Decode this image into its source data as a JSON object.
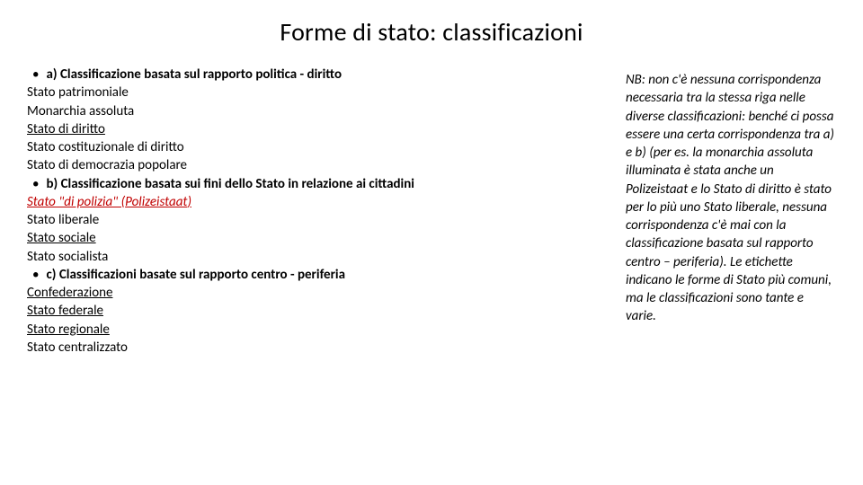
{
  "title": "Forme di stato: classificazioni",
  "left": {
    "a_head": "a) Classificazione basata sul rapporto politica - diritto",
    "a_items": {
      "i0": "Stato patrimoniale",
      "i1": "Monarchia assoluta",
      "i2": "Stato di diritto",
      "i3": "Stato costituzionale di diritto",
      "i4": "Stato di democrazia popolare"
    },
    "b_head": "b) Classificazione basata sui fini dello Stato in relazione ai cittadini",
    "b_items": {
      "i0_pre": "Stato \"di polizia\" (",
      "i0_ital": "Polizeistaat",
      "i0_post": ")",
      "i1": "Stato liberale",
      "i2": "Stato sociale ",
      "i3": "Stato socialista"
    },
    "c_head": "c) Classificazioni basate sul rapporto centro - periferia",
    "c_items": {
      "i0": "Confederazione",
      "i1": "Stato federale",
      "i2": "Stato regionale",
      "i3": "Stato centralizzato"
    }
  },
  "right": {
    "note": " NB: non c'è nessuna corrispondenza necessaria tra la stessa riga nelle diverse classificazioni: benché ci possa essere una certa corrispondenza tra a) e b) (per es. la monarchia assoluta illuminata è stata anche un Polizeistaat e lo Stato di diritto è stato per lo più uno Stato liberale, nessuna corrispondenza c'è mai con la classificazione basata sul rapporto centro – periferia). Le etichette indicano le forme di Stato più comuni, ma le classificazioni sono tante e varie."
  },
  "colors": {
    "text": "#000000",
    "accent_red": "#c00000",
    "background": "#ffffff"
  },
  "typography": {
    "title_fontsize": 28,
    "body_fontsize": 15
  }
}
